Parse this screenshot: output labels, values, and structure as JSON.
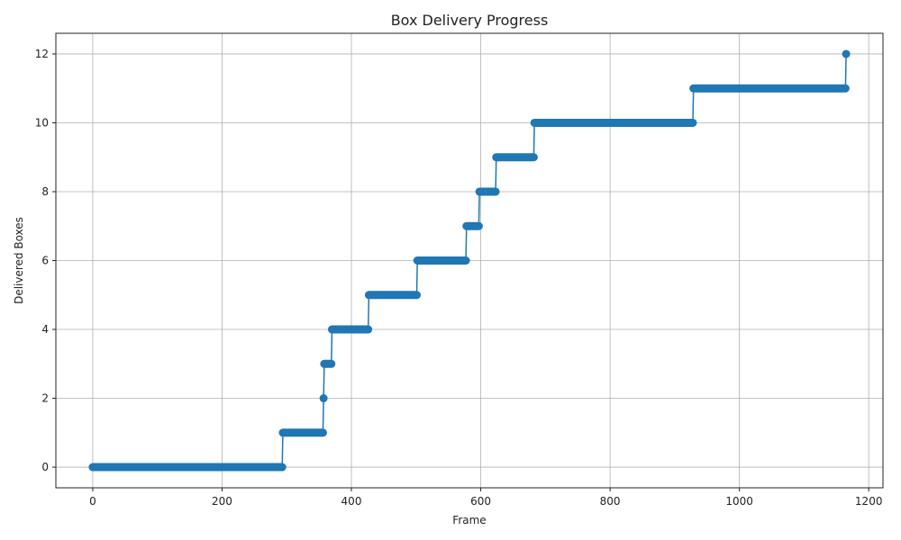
{
  "chart_data": {
    "type": "line",
    "title": "Box Delivery Progress",
    "xlabel": "Frame",
    "ylabel": "Delivered Boxes",
    "xlim": [
      -57,
      1222
    ],
    "ylim": [
      -0.6,
      12.6
    ],
    "xticks": [
      0,
      200,
      400,
      600,
      800,
      1000,
      1200
    ],
    "yticks": [
      0,
      2,
      4,
      6,
      8,
      10,
      12
    ],
    "grid": true,
    "line_color": "#1f77b4",
    "marker": "circle",
    "series": [
      {
        "segments": [
          {
            "value": 0,
            "x_start": 0,
            "x_end": 293
          },
          {
            "value": 1,
            "x_start": 294,
            "x_end": 356
          },
          {
            "value": 2,
            "x_start": 357,
            "x_end": 357
          },
          {
            "value": 3,
            "x_start": 358,
            "x_end": 369
          },
          {
            "value": 4,
            "x_start": 370,
            "x_end": 426
          },
          {
            "value": 5,
            "x_start": 427,
            "x_end": 501
          },
          {
            "value": 6,
            "x_start": 502,
            "x_end": 577
          },
          {
            "value": 7,
            "x_start": 578,
            "x_end": 597
          },
          {
            "value": 8,
            "x_start": 598,
            "x_end": 623
          },
          {
            "value": 9,
            "x_start": 624,
            "x_end": 682
          },
          {
            "value": 10,
            "x_start": 683,
            "x_end": 928
          },
          {
            "value": 11,
            "x_start": 929,
            "x_end": 1164
          },
          {
            "value": 12,
            "x_start": 1165,
            "x_end": 1165
          }
        ]
      }
    ]
  }
}
